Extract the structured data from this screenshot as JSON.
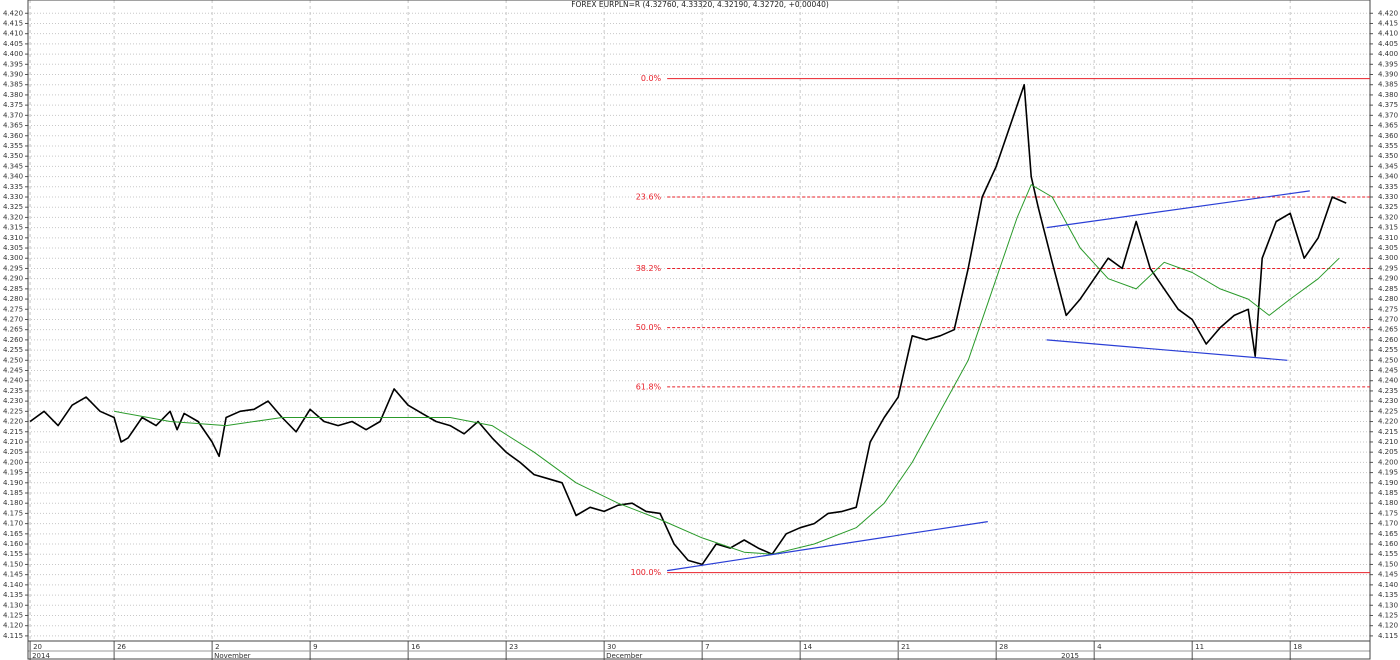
{
  "chart_data": {
    "type": "line",
    "title": "FOREX EURPLN=R (4.32760, 4.33320, 4.32190, 4.32720, +0.00040)",
    "xlim": [
      -0.15,
      95.7
    ],
    "xticks": [
      {
        "value": 0,
        "label": "20"
      },
      {
        "value": 6,
        "label": "26"
      },
      {
        "value": 13,
        "label": "2"
      },
      {
        "value": 20,
        "label": "9"
      },
      {
        "value": 27,
        "label": "16"
      },
      {
        "value": 34,
        "label": "23"
      },
      {
        "value": 41,
        "label": "30"
      },
      {
        "value": 48,
        "label": "7"
      },
      {
        "value": 55,
        "label": "14"
      },
      {
        "value": 62,
        "label": "21"
      },
      {
        "value": 69,
        "label": "28"
      },
      {
        "value": 76,
        "label": "4"
      },
      {
        "value": 83,
        "label": "11"
      },
      {
        "value": 90,
        "label": "18"
      }
    ],
    "x_period_labels": [
      {
        "value": 0,
        "label": "2014"
      },
      {
        "value": 13,
        "label": "November"
      },
      {
        "value": 41,
        "label": "December"
      },
      {
        "value": 73.5,
        "label": "2015"
      }
    ],
    "ylim": [
      4.1125,
      4.4265
    ],
    "yticks": [
      {
        "value": 4.115,
        "label": "4.115"
      },
      {
        "value": 4.12,
        "label": "4.120"
      },
      {
        "value": 4.125,
        "label": "4.125"
      },
      {
        "value": 4.13,
        "label": "4.130"
      },
      {
        "value": 4.135,
        "label": "4.135"
      },
      {
        "value": 4.14,
        "label": "4.140"
      },
      {
        "value": 4.145,
        "label": "4.145"
      },
      {
        "value": 4.15,
        "label": "4.150"
      },
      {
        "value": 4.155,
        "label": "4.155"
      },
      {
        "value": 4.16,
        "label": "4.160"
      },
      {
        "value": 4.165,
        "label": "4.165"
      },
      {
        "value": 4.17,
        "label": "4.170"
      },
      {
        "value": 4.175,
        "label": "4.175"
      },
      {
        "value": 4.18,
        "label": "4.180"
      },
      {
        "value": 4.185,
        "label": "4.185"
      },
      {
        "value": 4.19,
        "label": "4.190"
      },
      {
        "value": 4.195,
        "label": "4.195"
      },
      {
        "value": 4.2,
        "label": "4.200"
      },
      {
        "value": 4.205,
        "label": "4.205"
      },
      {
        "value": 4.21,
        "label": "4.210"
      },
      {
        "value": 4.215,
        "label": "4.215"
      },
      {
        "value": 4.22,
        "label": "4.220"
      },
      {
        "value": 4.225,
        "label": "4.225"
      },
      {
        "value": 4.23,
        "label": "4.230"
      },
      {
        "value": 4.235,
        "label": "4.235"
      },
      {
        "value": 4.24,
        "label": "4.240"
      },
      {
        "value": 4.245,
        "label": "4.245"
      },
      {
        "value": 4.25,
        "label": "4.250"
      },
      {
        "value": 4.255,
        "label": "4.255"
      },
      {
        "value": 4.26,
        "label": "4.260"
      },
      {
        "value": 4.265,
        "label": "4.265"
      },
      {
        "value": 4.27,
        "label": "4.270"
      },
      {
        "value": 4.275,
        "label": "4.275"
      },
      {
        "value": 4.28,
        "label": "4.280"
      },
      {
        "value": 4.285,
        "label": "4.285"
      },
      {
        "value": 4.29,
        "label": "4.290"
      },
      {
        "value": 4.295,
        "label": "4.295"
      },
      {
        "value": 4.3,
        "label": "4.300"
      },
      {
        "value": 4.305,
        "label": "4.305"
      },
      {
        "value": 4.31,
        "label": "4.310"
      },
      {
        "value": 4.315,
        "label": "4.315"
      },
      {
        "value": 4.32,
        "label": "4.320"
      },
      {
        "value": 4.325,
        "label": "4.325"
      },
      {
        "value": 4.33,
        "label": "4.330"
      },
      {
        "value": 4.335,
        "label": "4.335"
      },
      {
        "value": 4.34,
        "label": "4.340"
      },
      {
        "value": 4.345,
        "label": "4.345"
      },
      {
        "value": 4.35,
        "label": "4.350"
      },
      {
        "value": 4.355,
        "label": "4.355"
      },
      {
        "value": 4.36,
        "label": "4.360"
      },
      {
        "value": 4.365,
        "label": "4.365"
      },
      {
        "value": 4.37,
        "label": "4.370"
      },
      {
        "value": 4.375,
        "label": "4.375"
      },
      {
        "value": 4.38,
        "label": "4.380"
      },
      {
        "value": 4.385,
        "label": "4.385"
      },
      {
        "value": 4.39,
        "label": "4.390"
      },
      {
        "value": 4.395,
        "label": "4.395"
      },
      {
        "value": 4.4,
        "label": "4.400"
      },
      {
        "value": 4.405,
        "label": "4.405"
      },
      {
        "value": 4.41,
        "label": "4.410"
      },
      {
        "value": 4.415,
        "label": "4.415"
      },
      {
        "value": 4.42,
        "label": "4.420"
      }
    ],
    "grid": true,
    "series": [
      {
        "color": "#000000",
        "width": 1.6,
        "x": [
          0,
          1,
          2,
          3,
          4,
          5,
          6,
          6.5,
          7,
          8,
          9,
          10,
          10.5,
          11,
          12,
          13,
          13.5,
          14,
          15,
          16,
          17,
          18,
          19,
          20,
          21,
          22,
          23,
          24,
          25,
          26,
          27,
          28,
          29,
          30,
          31,
          32,
          33,
          34,
          35,
          36,
          37,
          38,
          39,
          40,
          41,
          42,
          43,
          44,
          45,
          46,
          47,
          48,
          49,
          50,
          51,
          52,
          53,
          54,
          55,
          56,
          57,
          58,
          59,
          60,
          61,
          62,
          63,
          64,
          65,
          66,
          67,
          68,
          69,
          70,
          71,
          71.5,
          72,
          73,
          74,
          75,
          76,
          77,
          78,
          79,
          80,
          81,
          82,
          83,
          84,
          85,
          86,
          87,
          87.5,
          88,
          89,
          90,
          91,
          92,
          93,
          94
        ],
        "values": [
          4.22,
          4.225,
          4.218,
          4.228,
          4.232,
          4.225,
          4.222,
          4.21,
          4.212,
          4.222,
          4.218,
          4.225,
          4.216,
          4.224,
          4.22,
          4.21,
          4.203,
          4.222,
          4.225,
          4.226,
          4.23,
          4.222,
          4.215,
          4.226,
          4.22,
          4.218,
          4.22,
          4.216,
          4.22,
          4.236,
          4.228,
          4.224,
          4.22,
          4.218,
          4.214,
          4.22,
          4.212,
          4.205,
          4.2,
          4.194,
          4.192,
          4.19,
          4.174,
          4.178,
          4.176,
          4.179,
          4.18,
          4.176,
          4.175,
          4.16,
          4.152,
          4.15,
          4.16,
          4.158,
          4.162,
          4.158,
          4.155,
          4.165,
          4.168,
          4.17,
          4.175,
          4.176,
          4.178,
          4.21,
          4.222,
          4.232,
          4.262,
          4.26,
          4.262,
          4.265,
          4.295,
          4.33,
          4.345,
          4.365,
          4.385,
          4.34,
          4.325,
          4.298,
          4.272,
          4.28,
          4.29,
          4.3,
          4.295,
          4.318,
          4.295,
          4.285,
          4.275,
          4.27,
          4.258,
          4.266,
          4.272,
          4.275,
          4.252,
          4.3,
          4.318,
          4.322,
          4.3,
          4.31,
          4.33,
          4.327
        ]
      },
      {
        "color": "#2a9a2a",
        "width": 1,
        "x": [
          6,
          10,
          14,
          18,
          22,
          26,
          30,
          33,
          36,
          39,
          42,
          45,
          48,
          51,
          53,
          56,
          59,
          61,
          63,
          65,
          67,
          69,
          70.5,
          71.5,
          73,
          75,
          77,
          79,
          81,
          83,
          85,
          87,
          88.5,
          90,
          92,
          93.5
        ],
        "values": [
          4.225,
          4.22,
          4.218,
          4.222,
          4.222,
          4.222,
          4.222,
          4.218,
          4.205,
          4.19,
          4.18,
          4.172,
          4.163,
          4.156,
          4.155,
          4.16,
          4.168,
          4.18,
          4.2,
          4.225,
          4.25,
          4.29,
          4.32,
          4.336,
          4.33,
          4.305,
          4.29,
          4.285,
          4.298,
          4.293,
          4.285,
          4.28,
          4.272,
          4.28,
          4.29,
          4.3
        ]
      }
    ],
    "fib_start": 45.5,
    "fib_levels": [
      {
        "label": "0.0%",
        "value": 4.388,
        "dashed": false
      },
      {
        "label": "23.6%",
        "value": 4.33,
        "dashed": true
      },
      {
        "label": "38.2%",
        "value": 4.295,
        "dashed": true
      },
      {
        "label": "50.0%",
        "value": 4.266,
        "dashed": true
      },
      {
        "label": "61.8%",
        "value": 4.237,
        "dashed": true
      },
      {
        "label": "100.0%",
        "value": 4.146,
        "dashed": false
      }
    ],
    "fib_color": "#e8202a",
    "trendlines": [
      {
        "color": "#2b3fd6",
        "x": [
          45.5,
          68.4
        ],
        "values": [
          4.147,
          4.171
        ]
      },
      {
        "color": "#2b3fd6",
        "x": [
          72.6,
          91.4
        ],
        "values": [
          4.315,
          4.333
        ]
      },
      {
        "color": "#2b3fd6",
        "x": [
          72.6,
          89.8
        ],
        "values": [
          4.26,
          4.25
        ]
      }
    ]
  }
}
